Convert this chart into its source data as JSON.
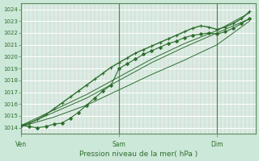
{
  "xlabel": "Pression niveau de la mer( hPa )",
  "bg_color": "#cce8d8",
  "plot_bg_color": "#d8ede4",
  "line_color": "#2d6e2d",
  "spine_color": "#5a8a5a",
  "ylim": [
    1013.5,
    1024.5
  ],
  "yticks": [
    1014,
    1015,
    1016,
    1017,
    1018,
    1019,
    1020,
    1021,
    1022,
    1023,
    1024
  ],
  "xtick_labels": [
    "Ven",
    "Sam",
    "Dim"
  ],
  "xtick_positions": [
    0.0,
    48.0,
    96.0
  ],
  "xlim": [
    0,
    115
  ],
  "series": [
    {
      "x": [
        0,
        4,
        8,
        12,
        16,
        20,
        24,
        28,
        32,
        36,
        40,
        44,
        48,
        52,
        56,
        60,
        64,
        68,
        72,
        76,
        80,
        84,
        88,
        92,
        96,
        100,
        104,
        108,
        112
      ],
      "y": [
        1014.2,
        1014.4,
        1014.7,
        1015.1,
        1015.6,
        1016.1,
        1016.6,
        1017.1,
        1017.6,
        1018.1,
        1018.6,
        1019.1,
        1019.5,
        1019.9,
        1020.3,
        1020.6,
        1020.9,
        1021.2,
        1021.5,
        1021.8,
        1022.1,
        1022.4,
        1022.6,
        1022.5,
        1022.3,
        1022.5,
        1022.8,
        1023.2,
        1023.8
      ],
      "marker": "+",
      "markersize": 3.5,
      "linewidth": 1.0
    },
    {
      "x": [
        0,
        4,
        8,
        12,
        16,
        20,
        24,
        28,
        32,
        36,
        40,
        44,
        48,
        52,
        56,
        60,
        64,
        68,
        72,
        76,
        80,
        84,
        88,
        92,
        96,
        100,
        104,
        108,
        112
      ],
      "y": [
        1014.2,
        1014.1,
        1014.0,
        1014.1,
        1014.3,
        1014.4,
        1014.8,
        1015.3,
        1015.9,
        1016.5,
        1017.1,
        1017.6,
        1019.0,
        1019.4,
        1019.8,
        1020.2,
        1020.5,
        1020.8,
        1021.1,
        1021.3,
        1021.6,
        1021.8,
        1021.9,
        1022.0,
        1021.9,
        1022.1,
        1022.4,
        1022.8,
        1023.2
      ],
      "marker": "D",
      "markersize": 2.0,
      "linewidth": 0.8
    },
    {
      "x": [
        0,
        16,
        32,
        48,
        64,
        80,
        96,
        112
      ],
      "y": [
        1014.1,
        1015.3,
        1016.5,
        1018.0,
        1019.5,
        1020.8,
        1022.0,
        1023.2
      ],
      "marker": null,
      "markersize": 0,
      "linewidth": 0.7
    },
    {
      "x": [
        0,
        16,
        32,
        48,
        64,
        80,
        96,
        112
      ],
      "y": [
        1014.2,
        1015.5,
        1016.8,
        1018.3,
        1019.8,
        1021.1,
        1022.2,
        1023.7
      ],
      "marker": null,
      "markersize": 0,
      "linewidth": 0.7
    },
    {
      "x": [
        0,
        16,
        32,
        48,
        64,
        80,
        96,
        112
      ],
      "y": [
        1014.1,
        1014.9,
        1015.9,
        1017.2,
        1018.5,
        1019.7,
        1021.0,
        1023.0
      ],
      "marker": null,
      "markersize": 0,
      "linewidth": 0.7
    }
  ]
}
